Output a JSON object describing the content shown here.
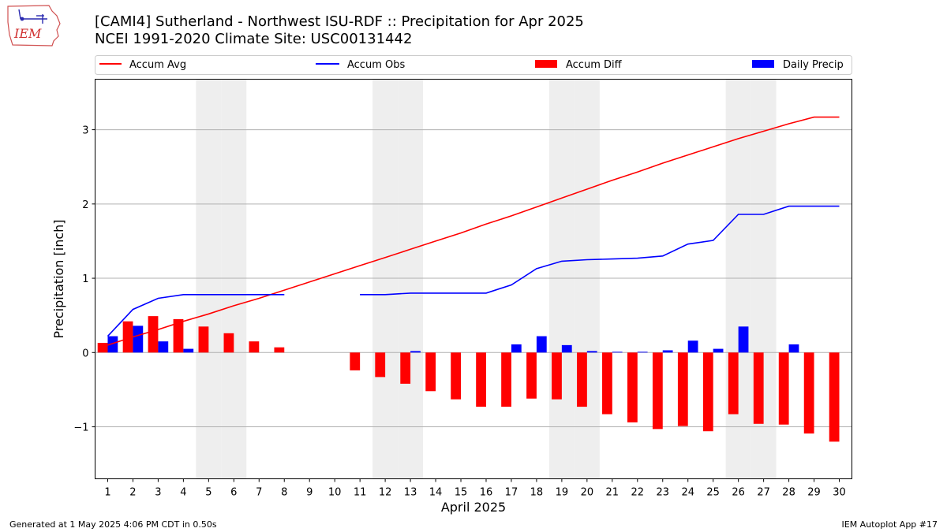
{
  "header": {
    "title_line1": "[CAMI4] Sutherland - Northwest ISU-RDF :: Precipitation for Apr 2025",
    "title_line2": "NCEI 1991-2020 Climate Site: USC00131442"
  },
  "logo": {
    "text": "IEM",
    "icon": "iem-iowa-logo"
  },
  "footer": {
    "left": "Generated at 1 May 2025 4:06 PM CDT in 0.50s",
    "right": "IEM Autoplot App #17"
  },
  "colors": {
    "avg": "#ff0000",
    "obs": "#0000ff",
    "diff": "#ff0000",
    "daily": "#0000ff",
    "weekend": "#eeeeee",
    "grid": "#b0b0b0"
  },
  "chart_data": {
    "type": "bar",
    "xlabel": "April 2025",
    "ylabel": "Precipitation [inch]",
    "ylim": [
      -1.7,
      3.68
    ],
    "xlim": [
      0.5,
      30.5
    ],
    "yticks": [
      3,
      2,
      1,
      0,
      -1
    ],
    "ytick_labels": [
      "3",
      "2",
      "1",
      "0",
      "−1"
    ],
    "grid": "horizontal",
    "legend_placement": "top, above plot",
    "legend": [
      "Accum Avg",
      "Accum Obs",
      "Accum Diff",
      "Daily Precip"
    ],
    "shaded_days": [
      5,
      6,
      12,
      13,
      19,
      20,
      26,
      27
    ],
    "days": [
      1,
      2,
      3,
      4,
      5,
      6,
      7,
      8,
      9,
      10,
      11,
      12,
      13,
      14,
      15,
      16,
      17,
      18,
      19,
      20,
      21,
      22,
      23,
      24,
      25,
      26,
      27,
      28,
      29,
      30
    ],
    "series": [
      {
        "name": "Accum Avg",
        "kind": "line",
        "values": [
          0.1,
          0.21,
          0.31,
          0.42,
          0.52,
          0.63,
          0.73,
          0.84,
          0.95,
          1.06,
          1.17,
          1.28,
          1.39,
          1.5,
          1.61,
          1.73,
          1.84,
          1.96,
          2.08,
          2.2,
          2.32,
          2.43,
          2.55,
          2.66,
          2.77,
          2.88,
          2.98,
          3.08,
          3.17,
          3.17
        ]
      },
      {
        "name": "Accum Obs",
        "kind": "line",
        "values": [
          0.22,
          0.58,
          0.73,
          0.78,
          0.78,
          0.78,
          0.78,
          0.78,
          null,
          null,
          0.78,
          0.78,
          0.8,
          0.8,
          0.8,
          0.8,
          0.91,
          1.13,
          1.23,
          1.25,
          1.26,
          1.27,
          1.3,
          1.46,
          1.51,
          1.86,
          1.86,
          1.97,
          1.97,
          1.97
        ]
      },
      {
        "name": "Accum Diff",
        "kind": "bar",
        "values": [
          0.13,
          0.42,
          0.49,
          0.45,
          0.35,
          0.26,
          0.15,
          0.07,
          null,
          null,
          -0.24,
          -0.33,
          -0.42,
          -0.52,
          -0.63,
          -0.73,
          -0.73,
          -0.62,
          -0.63,
          -0.73,
          -0.83,
          -0.94,
          -1.03,
          -0.99,
          -1.06,
          -0.83,
          -0.96,
          -0.97,
          -1.09,
          -1.2
        ]
      },
      {
        "name": "Daily Precip",
        "kind": "bar",
        "values": [
          0.22,
          0.36,
          0.15,
          0.05,
          0,
          0,
          0,
          0,
          null,
          null,
          0,
          0,
          0.02,
          0,
          0,
          0,
          0.11,
          0.22,
          0.1,
          0.02,
          0.01,
          0.01,
          0.03,
          0.16,
          0.05,
          0.35,
          0,
          0.11,
          0,
          0
        ]
      }
    ]
  }
}
